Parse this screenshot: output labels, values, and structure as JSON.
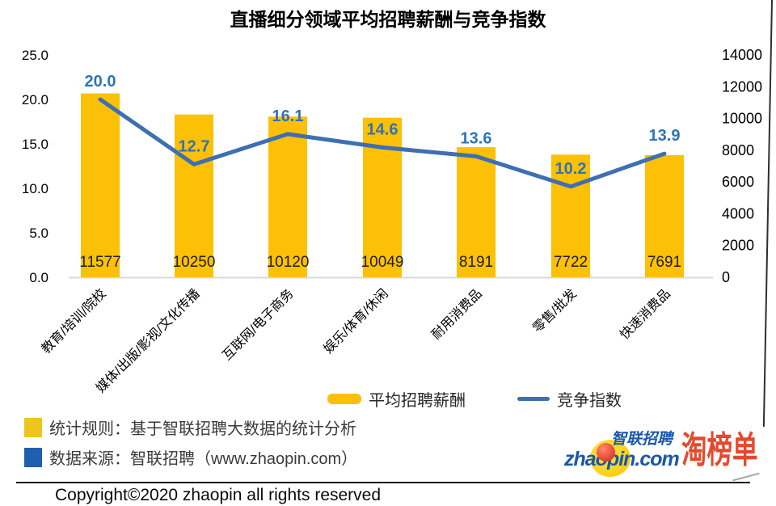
{
  "title": "直播细分领域平均招聘薪酬与竞争指数",
  "chart_data": {
    "type": "combo-bar-line",
    "title": "直播细分领域平均招聘薪酬与竞争指数",
    "categories": [
      "教育/培训/院校",
      "媒体/出版/影视/文化传播",
      "互联网/电子商务",
      "娱乐/体育/休闲",
      "耐用消费品",
      "零售/批发",
      "快速消费品"
    ],
    "series": [
      {
        "name": "平均招聘薪酬",
        "type": "bar",
        "y_axis": "right",
        "color": "#FCC006",
        "values": [
          11577,
          10250,
          10120,
          10049,
          8191,
          7722,
          7691
        ],
        "labels": [
          "11577",
          "10250",
          "10120",
          "10049",
          "8191",
          "7722",
          "7691"
        ]
      },
      {
        "name": "竞争指数",
        "type": "line",
        "y_axis": "left",
        "color": "#3E6FB2",
        "values": [
          20.0,
          12.7,
          16.1,
          14.6,
          13.6,
          10.2,
          13.9
        ],
        "labels": [
          "20.0",
          "12.7",
          "16.1",
          "14.6",
          "13.6",
          "10.2",
          "13.9"
        ]
      }
    ],
    "left_axis": {
      "min": 0,
      "max": 25,
      "tick_labels": [
        "25.0",
        "20.0",
        "15.0",
        "10.0",
        "5.0",
        "0.0"
      ]
    },
    "right_axis": {
      "min": 0,
      "max": 14000,
      "tick_labels": [
        "14000",
        "12000",
        "10000",
        "8000",
        "6000",
        "4000",
        "2000",
        "0"
      ]
    },
    "grid": false,
    "legend_position": "bottom"
  },
  "legend": {
    "items": [
      {
        "label": "平均招聘薪酬",
        "swatch": "bar",
        "color": "#FCC006"
      },
      {
        "label": "竞争指数",
        "swatch": "line",
        "color": "#3E6FB2"
      }
    ]
  },
  "footnotes": {
    "rule": {
      "swatch_color": "#EFC51D",
      "text": "统计规则：基于智联招聘大数据的统计分析"
    },
    "source": {
      "swatch_color": "#1F5FAE",
      "text": "数据来源：智联招聘（www.zhaopin.com）"
    }
  },
  "logo": {
    "brand_cn": "智联招聘",
    "brand_domain": "zhaopin.com",
    "stamp": "淘榜单"
  },
  "copyright": "Copyright©2020 zhaopin all rights reserved",
  "colors": {
    "bar": "#FCC006",
    "line": "#3E6FB2",
    "line_label": "#2E74B6",
    "axis_text": "#000000",
    "bar_label": "#1f1f1f",
    "stamp_red": "#E34A2D",
    "brand_blue": "#1A57A8"
  }
}
